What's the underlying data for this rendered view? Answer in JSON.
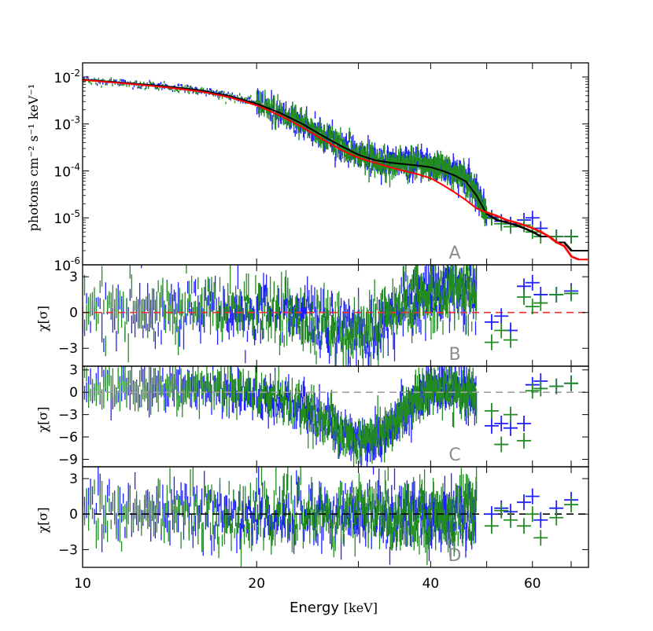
{
  "chart_data": {
    "type": "line",
    "x_scale": "log",
    "xlim": [
      10,
      75
    ],
    "x_tick_labels": [
      "10",
      "20",
      "40",
      "60"
    ],
    "xlabel": "Energy [keV]",
    "xlabel_main": "Energy",
    "xlabel_unit": "[keV]",
    "panels": [
      {
        "id": "A",
        "letter": "A",
        "y_scale": "log",
        "ylim": [
          1e-06,
          0.02
        ],
        "ylabel": "photons cm⁻² s⁻¹ keV⁻¹",
        "y_ticks": [
          {
            "value": 0.01,
            "base": "10",
            "exp": "-2"
          },
          {
            "value": 0.001,
            "base": "10",
            "exp": "-3"
          },
          {
            "value": 0.0001,
            "base": "10",
            "exp": "-4"
          },
          {
            "value": 1e-05,
            "base": "10",
            "exp": "-5"
          },
          {
            "value": 1e-06,
            "base": "10",
            "exp": "-6"
          }
        ],
        "series": [
          {
            "color": "#1f1fff",
            "kind": "data",
            "x": [
              10,
              12,
              14,
              16,
              18,
              20,
              22,
              24,
              26,
              28,
              30,
              32,
              34,
              36,
              38,
              40,
              42,
              44,
              46,
              48,
              50,
              52,
              54,
              56,
              58,
              60,
              62,
              64,
              66,
              68,
              70,
              72,
              75
            ],
            "y": [
              0.0088,
              0.0074,
              0.0063,
              0.0052,
              0.0039,
              0.0027,
              0.0017,
              0.001,
              0.00057,
              0.00034,
              0.00022,
              0.00017,
              0.00015,
              0.00015,
              0.00014,
              0.00013,
              0.00011,
              9e-05,
              7e-05,
              3.5e-05,
              1.2e-05,
              9e-06,
              8e-06,
              7e-06,
              9e-06,
              1e-05,
              6e-06,
              5e-06,
              4e-06,
              4e-06,
              4e-06,
              4e-06,
              4e-06
            ]
          },
          {
            "color": "#228b22",
            "kind": "data",
            "x": [
              10,
              12,
              14,
              16,
              18,
              20,
              22,
              24,
              26,
              28,
              30,
              32,
              34,
              36,
              38,
              40,
              42,
              44,
              46,
              48,
              50,
              52,
              54,
              56,
              58,
              60,
              62,
              64,
              66,
              68,
              70,
              72,
              75
            ],
            "y": [
              0.0087,
              0.0073,
              0.0062,
              0.0051,
              0.0039,
              0.0027,
              0.0017,
              0.001,
              0.00055,
              0.00033,
              0.00022,
              0.00017,
              0.00015,
              0.00014,
              0.00014,
              0.00013,
              0.00011,
              9e-05,
              7e-05,
              3e-05,
              1.2e-05,
              8e-06,
              7e-06,
              6e-06,
              7e-06,
              5e-06,
              4e-06,
              4e-06,
              4e-06,
              4e-06,
              4e-06,
              4e-06,
              4e-06
            ]
          },
          {
            "color": "#000000",
            "kind": "model",
            "x": [
              10,
              12,
              14,
              16,
              18,
              20,
              22,
              24,
              26,
              28,
              30,
              32,
              34,
              36,
              38,
              40,
              42,
              44,
              46,
              48,
              50,
              52,
              54,
              56,
              58,
              60,
              62,
              64,
              66,
              68,
              70,
              72,
              75
            ],
            "y": [
              0.0088,
              0.0074,
              0.0063,
              0.0052,
              0.0039,
              0.0027,
              0.0017,
              0.001,
              0.00056,
              0.00034,
              0.00022,
              0.00017,
              0.00015,
              0.00014,
              0.00013,
              0.00012,
              0.0001,
              8e-05,
              6e-05,
              3e-05,
              1.2e-05,
              9e-06,
              8e-06,
              7e-06,
              6e-06,
              5e-06,
              4e-06,
              4e-06,
              3e-06,
              3e-06,
              2e-06,
              2e-06,
              2e-06
            ]
          },
          {
            "color": "#ff0000",
            "kind": "model",
            "x": [
              10,
              12,
              14,
              16,
              18,
              20,
              22,
              24,
              26,
              28,
              30,
              32,
              34,
              36,
              38,
              40,
              42,
              44,
              46,
              48,
              50,
              52,
              54,
              56,
              58,
              60,
              62,
              64,
              66,
              68,
              70,
              72,
              75
            ],
            "y": [
              0.0087,
              0.0072,
              0.006,
              0.0049,
              0.0037,
              0.0025,
              0.0015,
              0.00085,
              0.00047,
              0.00028,
              0.00019,
              0.00015,
              0.00012,
              0.0001,
              8.5e-05,
              7e-05,
              5e-05,
              3.5e-05,
              2.4e-05,
              1.6e-05,
              1.3e-05,
              1.1e-05,
              9e-06,
              8e-06,
              7e-06,
              6e-06,
              5e-06,
              4e-06,
              3e-06,
              2.5e-06,
              1.5e-06,
              1.3e-06,
              1.3e-06
            ]
          }
        ]
      },
      {
        "id": "B",
        "letter": "B",
        "y_scale": "linear",
        "ylim": [
          -4.5,
          4
        ],
        "ylabel": "χ[σ]",
        "y_ticks": [
          {
            "value": 3,
            "label": "3"
          },
          {
            "value": 0,
            "label": "0"
          },
          {
            "value": -3,
            "label": "−3"
          }
        ],
        "zero_line_color": "#e8322a",
        "trend_x": [
          10,
          14,
          18,
          22,
          25,
          27,
          29,
          31,
          33,
          35,
          37,
          39,
          41,
          43,
          45,
          47,
          48
        ],
        "trend_y": [
          0.3,
          0.2,
          0.1,
          0.0,
          -0.5,
          -1.0,
          -1.5,
          -1.8,
          -1.0,
          0.2,
          0.8,
          1.3,
          1.7,
          2.0,
          2.0,
          1.8,
          1.5
        ],
        "binned_points": [
          {
            "color": "#1f1fff",
            "x": [
              51,
              53,
              55,
              58,
              60,
              62,
              66,
              70
            ],
            "y": [
              -0.8,
              -0.3,
              -1.5,
              2.2,
              2.5,
              1.5,
              1.5,
              1.8
            ]
          },
          {
            "color": "#228b22",
            "x": [
              51,
              53,
              55,
              58,
              60,
              62,
              66,
              70
            ],
            "y": [
              -2.5,
              -1.5,
              -2.3,
              1.3,
              0.5,
              0.8,
              1.5,
              1.6
            ]
          }
        ]
      },
      {
        "id": "C",
        "letter": "C",
        "y_scale": "linear",
        "ylim": [
          -10,
          3.5
        ],
        "ylabel": "χ[σ]",
        "y_ticks": [
          {
            "value": 3,
            "label": "3"
          },
          {
            "value": 0,
            "label": "0"
          },
          {
            "value": -3,
            "label": "−3"
          },
          {
            "value": -6,
            "label": "−6"
          },
          {
            "value": -9,
            "label": "−9"
          }
        ],
        "zero_line_color": "#a0a0a0",
        "trend_x": [
          10,
          14,
          18,
          21,
          23,
          25,
          27,
          29,
          31,
          33,
          35,
          37,
          39,
          41,
          43,
          45,
          47,
          48
        ],
        "trend_y": [
          0.5,
          0.6,
          0.3,
          -0.5,
          -1.5,
          -3.0,
          -4.5,
          -6.0,
          -6.5,
          -5.5,
          -3.5,
          -1.5,
          -0.2,
          0.3,
          0.5,
          0.3,
          0.0,
          -0.8
        ],
        "binned_points": [
          {
            "color": "#1f1fff",
            "x": [
              51,
              53,
              55,
              58,
              60,
              62,
              66,
              70
            ],
            "y": [
              -4.5,
              -4.2,
              -4.8,
              -4.2,
              1.0,
              1.5,
              0.8,
              1.2
            ]
          },
          {
            "color": "#228b22",
            "x": [
              51,
              53,
              55,
              58,
              60,
              62,
              66,
              70
            ],
            "y": [
              -2.5,
              -7.0,
              -3.0,
              -6.5,
              0.2,
              0.5,
              0.8,
              1.2
            ]
          }
        ]
      },
      {
        "id": "D",
        "letter": "D",
        "y_scale": "linear",
        "ylim": [
          -4.5,
          4
        ],
        "ylabel": "χ[σ]",
        "y_ticks": [
          {
            "value": 3,
            "label": "3"
          },
          {
            "value": 0,
            "label": "0"
          },
          {
            "value": -3,
            "label": "−3"
          }
        ],
        "zero_line_color": "#000000",
        "trend_x": [
          10,
          20,
          30,
          40,
          48
        ],
        "trend_y": [
          0,
          0,
          0,
          0,
          0
        ],
        "binned_points": [
          {
            "color": "#1f1fff",
            "x": [
              51,
              53,
              55,
              58,
              60,
              62,
              66,
              70
            ],
            "y": [
              0.0,
              0.5,
              0.2,
              1.0,
              1.5,
              -0.5,
              0.5,
              1.2
            ]
          },
          {
            "color": "#228b22",
            "x": [
              51,
              53,
              55,
              58,
              60,
              62,
              66,
              70
            ],
            "y": [
              -1.0,
              0.3,
              -0.5,
              -1.0,
              0.0,
              -2.0,
              -0.3,
              0.8
            ]
          }
        ]
      }
    ]
  }
}
